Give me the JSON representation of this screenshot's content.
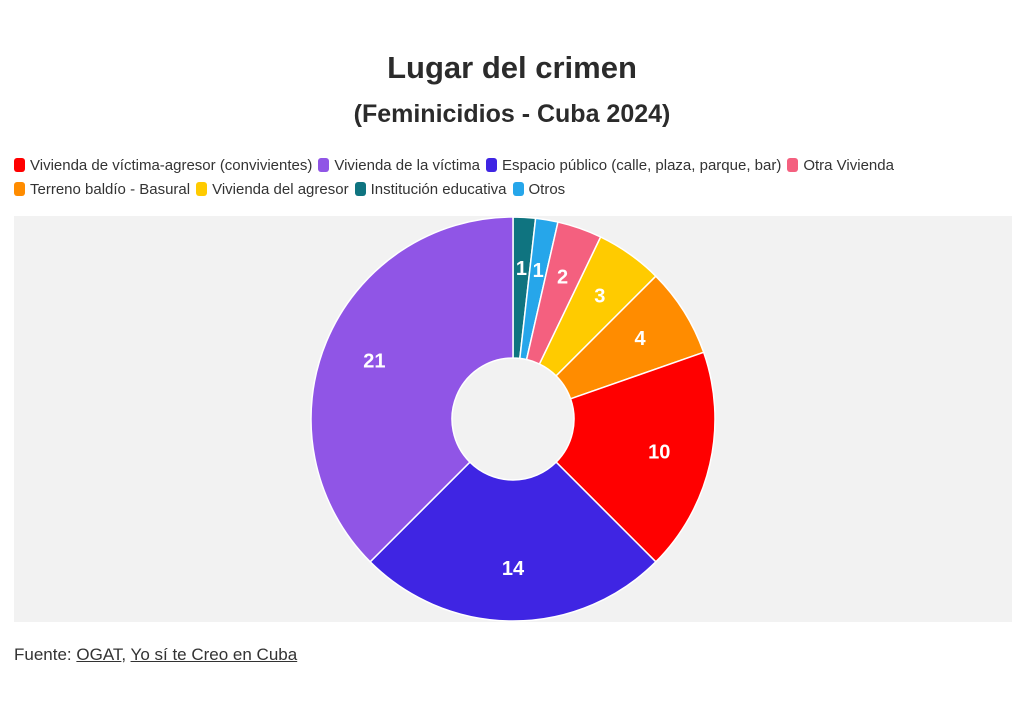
{
  "header": {
    "title": "Lugar del crimen",
    "subtitle": "(Feminicidios - Cuba 2024)"
  },
  "legend": {
    "rows": [
      [
        {
          "label": "Vivienda de víctima-agresor (convivientes)",
          "color": "#ff0000"
        },
        {
          "label": "Vivienda de la víctima",
          "color": "#9055e6"
        },
        {
          "label": "Espacio público (calle, plaza, parque, bar)",
          "color": "#3f25e3"
        },
        {
          "label": "Otra Vivienda",
          "color": "#f4607f"
        }
      ],
      [
        {
          "label": "Terreno baldío - Basural",
          "color": "#ff8c00"
        },
        {
          "label": "Vivienda del agresor",
          "color": "#ffcb00"
        },
        {
          "label": "Institución educativa",
          "color": "#0f7480"
        },
        {
          "label": "Otros",
          "color": "#26a6ea"
        }
      ]
    ]
  },
  "chart_data": {
    "type": "pie",
    "variant": "donut",
    "title": "Lugar del crimen",
    "subtitle": "(Feminicidios - Cuba 2024)",
    "legend_position": "top-left",
    "slices": [
      {
        "label": "Institución educativa",
        "value": 1,
        "color": "#0f7480"
      },
      {
        "label": "Otros",
        "value": 1,
        "color": "#26a6ea"
      },
      {
        "label": "Otra Vivienda",
        "value": 2,
        "color": "#f4607f"
      },
      {
        "label": "Vivienda del agresor",
        "value": 3,
        "color": "#ffcb00"
      },
      {
        "label": "Terreno baldío - Basural",
        "value": 4,
        "color": "#ff8c00"
      },
      {
        "label": "Vivienda de víctima-agresor (convivientes)",
        "value": 10,
        "color": "#ff0000"
      },
      {
        "label": "Espacio público (calle, plaza, parque, bar)",
        "value": 14,
        "color": "#3f25e3"
      },
      {
        "label": "Vivienda de la víctima",
        "value": 21,
        "color": "#9055e6"
      }
    ]
  },
  "footer": {
    "prefix": "Fuente: ",
    "source_1": "OGAT",
    "separator": ", ",
    "source_2": "Yo sí te Creo en Cuba"
  }
}
